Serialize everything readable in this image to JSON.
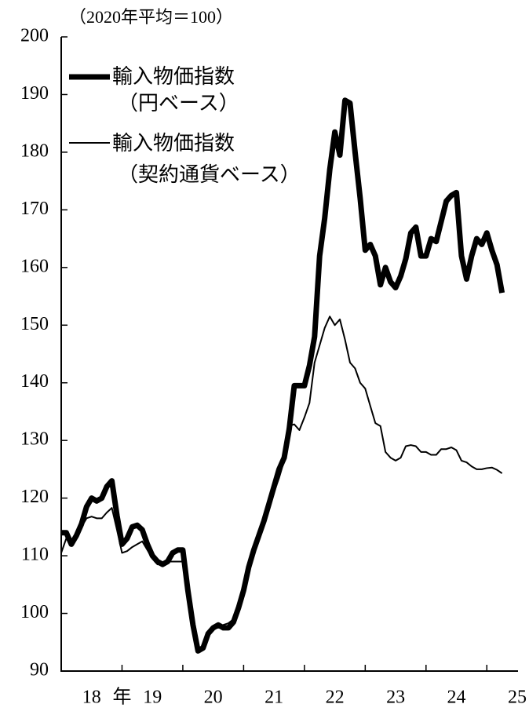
{
  "chart_data": {
    "type": "line",
    "y_unit": "（2020年平均＝100）",
    "x_unit": "年",
    "x": [
      2018,
      2018.083,
      2018.167,
      2018.25,
      2018.333,
      2018.417,
      2018.5,
      2018.583,
      2018.667,
      2018.75,
      2018.833,
      2018.917,
      2019,
      2019.083,
      2019.167,
      2019.25,
      2019.333,
      2019.417,
      2019.5,
      2019.583,
      2019.667,
      2019.75,
      2019.833,
      2019.917,
      2020,
      2020.083,
      2020.167,
      2020.25,
      2020.333,
      2020.417,
      2020.5,
      2020.583,
      2020.667,
      2020.75,
      2020.833,
      2020.917,
      2021,
      2021.083,
      2021.167,
      2021.25,
      2021.333,
      2021.417,
      2021.5,
      2021.583,
      2021.667,
      2021.75,
      2021.833,
      2021.917,
      2022,
      2022.083,
      2022.167,
      2022.25,
      2022.333,
      2022.417,
      2022.5,
      2022.583,
      2022.667,
      2022.75,
      2022.833,
      2022.917,
      2023,
      2023.083,
      2023.167,
      2023.25,
      2023.333,
      2023.417,
      2023.5,
      2023.583,
      2023.667,
      2023.75,
      2023.833,
      2023.917,
      2024,
      2024.083,
      2024.167,
      2024.25,
      2024.333,
      2024.417,
      2024.5,
      2024.583,
      2024.667,
      2024.75,
      2024.833,
      2024.917,
      2025,
      2025.083,
      2025.167,
      2025.25
    ],
    "series": [
      {
        "name": [
          "輸入物価指数",
          "（円ベース）"
        ],
        "color": "#000000",
        "width": 7,
        "values": [
          114,
          114,
          112,
          113.5,
          115.5,
          118.5,
          120,
          119.5,
          120,
          122,
          123,
          117,
          112,
          113,
          115,
          115.3,
          114.5,
          112,
          110,
          109,
          108.5,
          109,
          110.5,
          111,
          111,
          104,
          98,
          93.5,
          94,
          96.5,
          97.5,
          98,
          97.5,
          97.5,
          98.5,
          101,
          104,
          108,
          111,
          113.5,
          116,
          119,
          122,
          125,
          127,
          132,
          139.5,
          139.5,
          139.5,
          143,
          148,
          162,
          168.5,
          177,
          183.5,
          179.5,
          189,
          188.5,
          180,
          172,
          163,
          164,
          162,
          157,
          160,
          157.5,
          156.5,
          158.5,
          161.5,
          166,
          167,
          162,
          162,
          165,
          164.5,
          168,
          171.5,
          172.5,
          173,
          162,
          158,
          162,
          165,
          164,
          166,
          163,
          160.5,
          155.6
        ]
      },
      {
        "name": [
          "輸入物価指数",
          "（契約通貨ベース）"
        ],
        "color": "#000000",
        "width": 2,
        "values": [
          110.5,
          113,
          112,
          113,
          115,
          116.5,
          116.8,
          116.5,
          116.5,
          117.5,
          118.3,
          114.5,
          110.5,
          110.8,
          111.5,
          112,
          112.5,
          111,
          109.5,
          108.5,
          108.5,
          109,
          109,
          109,
          109,
          103.5,
          98.5,
          93.8,
          94.5,
          96.5,
          97.5,
          97.5,
          98,
          98.3,
          99,
          101.5,
          104,
          107.5,
          110.5,
          113,
          115.5,
          118,
          121,
          123.5,
          126.5,
          132.5,
          132.8,
          131.8,
          134,
          136.5,
          143.5,
          146.5,
          149.5,
          151.5,
          150,
          151,
          147.5,
          143.5,
          142.5,
          140,
          139,
          136,
          133,
          132.5,
          128,
          127,
          126.5,
          127,
          129,
          129.2,
          129,
          128,
          128,
          127.5,
          127.5,
          128.5,
          128.5,
          128.8,
          128.3,
          126.5,
          126.2,
          125.5,
          125,
          125,
          125.2,
          125.3,
          124.9,
          124.3
        ]
      }
    ],
    "xlim": [
      2018,
      2025.5
    ],
    "xticks": [
      {
        "value": 2018.5,
        "label": "18"
      },
      {
        "value": 2019.5,
        "label": "19"
      },
      {
        "value": 2020.5,
        "label": "20"
      },
      {
        "value": 2021.5,
        "label": "21"
      },
      {
        "value": 2022.5,
        "label": "22"
      },
      {
        "value": 2023.5,
        "label": "23"
      },
      {
        "value": 2024.5,
        "label": "24"
      },
      {
        "value": 2025.5,
        "label": "25"
      }
    ],
    "xtick_marks": [
      2019,
      2020,
      2021,
      2022,
      2023,
      2024,
      2025
    ],
    "x_unit_at": 2019,
    "ylim": [
      90,
      200
    ],
    "yticks": [
      90,
      100,
      110,
      120,
      130,
      140,
      150,
      160,
      170,
      180,
      190,
      200
    ],
    "grid": false
  }
}
